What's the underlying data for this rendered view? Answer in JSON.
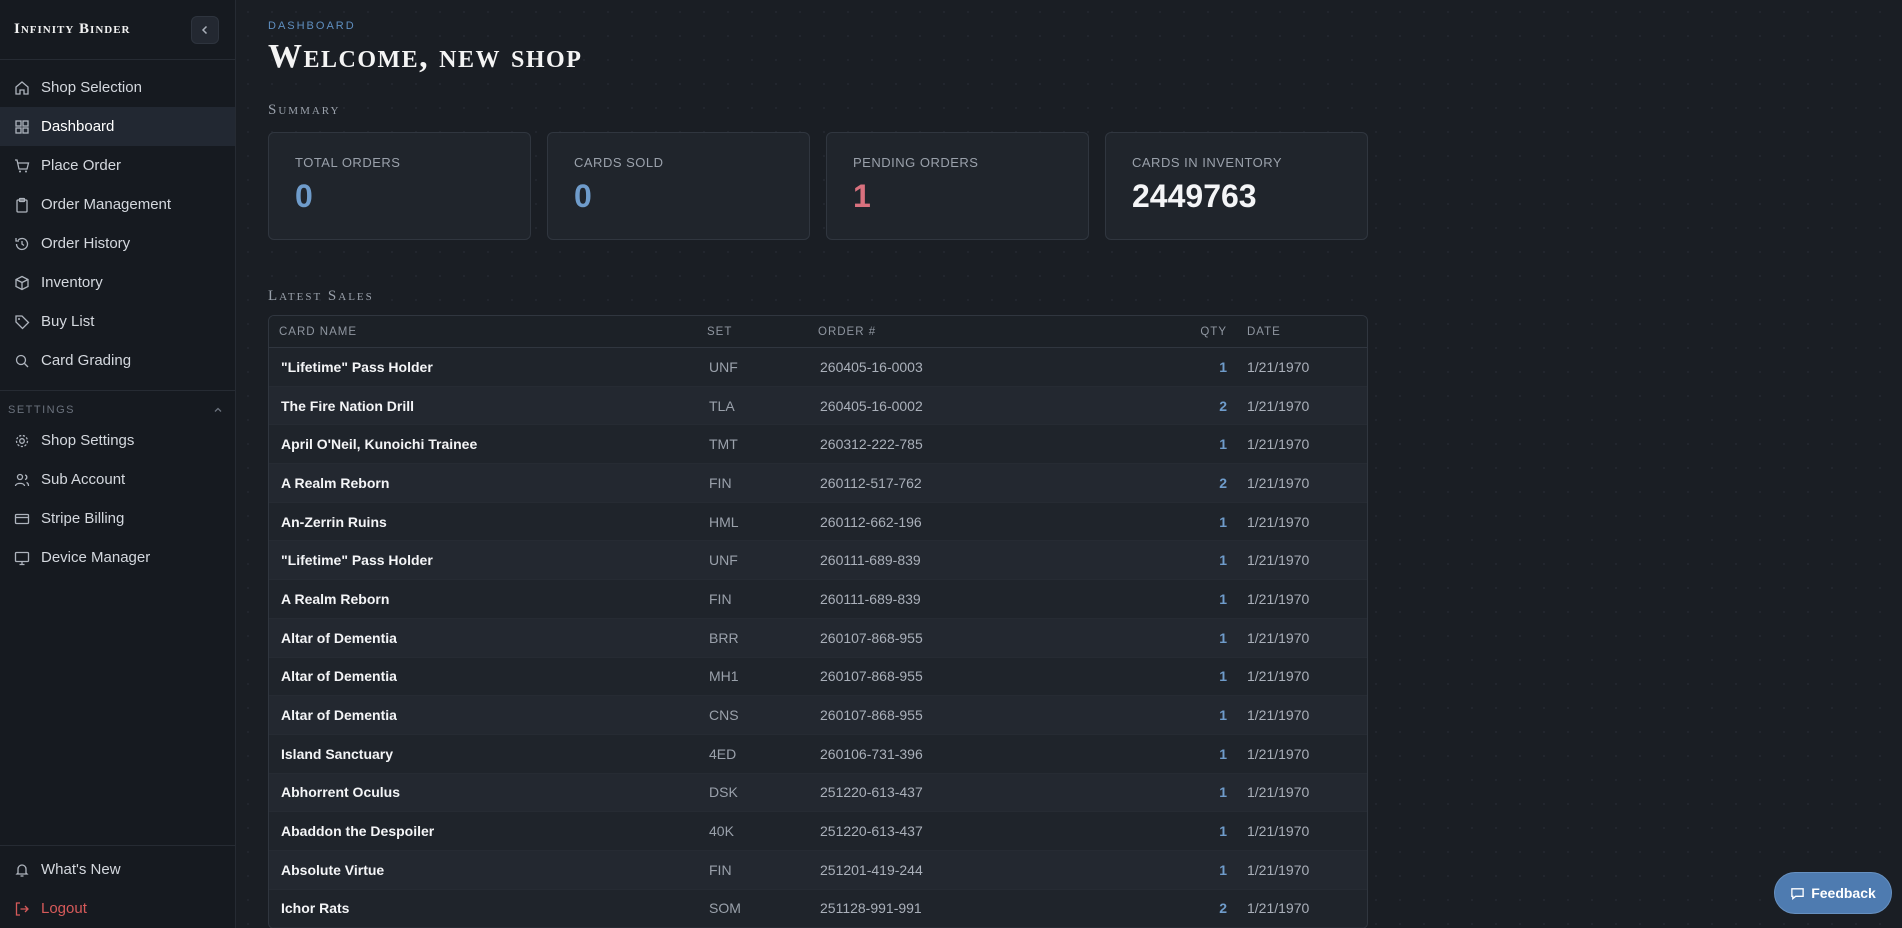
{
  "sidebar": {
    "brand": "Infinity Binder",
    "nav": [
      {
        "label": "Shop Selection",
        "icon": "home-icon"
      },
      {
        "label": "Dashboard",
        "icon": "grid-icon",
        "active": true
      },
      {
        "label": "Place Order",
        "icon": "cart-icon"
      },
      {
        "label": "Order Management",
        "icon": "clipboard-icon"
      },
      {
        "label": "Order History",
        "icon": "history-icon"
      },
      {
        "label": "Inventory",
        "icon": "box-icon"
      },
      {
        "label": "Buy List",
        "icon": "tag-icon"
      },
      {
        "label": "Card Grading",
        "icon": "search-icon"
      }
    ],
    "settings_label": "SETTINGS",
    "settings": [
      {
        "label": "Shop Settings",
        "icon": "gear-icon"
      },
      {
        "label": "Sub Account",
        "icon": "users-icon"
      },
      {
        "label": "Stripe Billing",
        "icon": "credit-card-icon"
      },
      {
        "label": "Device Manager",
        "icon": "monitor-icon"
      }
    ],
    "whats_new": "What's New",
    "logout": "Logout"
  },
  "header": {
    "eyebrow": "DASHBOARD",
    "title": "Welcome, new shop"
  },
  "summary": {
    "title": "Summary",
    "cards": [
      {
        "label": "TOTAL ORDERS",
        "value": "0"
      },
      {
        "label": "CARDS SOLD",
        "value": "0"
      },
      {
        "label": "PENDING ORDERS",
        "value": "1"
      },
      {
        "label": "CARDS IN INVENTORY",
        "value": "2449763"
      }
    ]
  },
  "sales": {
    "title": "Latest Sales",
    "columns": {
      "name": "CARD NAME",
      "set": "SET",
      "order": "ORDER #",
      "qty": "QTY",
      "date": "DATE"
    },
    "rows": [
      {
        "name": "\"Lifetime\" Pass Holder",
        "set": "UNF",
        "order": "260405-16-0003",
        "qty": "1",
        "date": "1/21/1970"
      },
      {
        "name": "The Fire Nation Drill",
        "set": "TLA",
        "order": "260405-16-0002",
        "qty": "2",
        "date": "1/21/1970"
      },
      {
        "name": "April O'Neil, Kunoichi Trainee",
        "set": "TMT",
        "order": "260312-222-785",
        "qty": "1",
        "date": "1/21/1970"
      },
      {
        "name": "A Realm Reborn",
        "set": "FIN",
        "order": "260112-517-762",
        "qty": "2",
        "date": "1/21/1970"
      },
      {
        "name": "An-Zerrin Ruins",
        "set": "HML",
        "order": "260112-662-196",
        "qty": "1",
        "date": "1/21/1970"
      },
      {
        "name": "\"Lifetime\" Pass Holder",
        "set": "UNF",
        "order": "260111-689-839",
        "qty": "1",
        "date": "1/21/1970"
      },
      {
        "name": "A Realm Reborn",
        "set": "FIN",
        "order": "260111-689-839",
        "qty": "1",
        "date": "1/21/1970"
      },
      {
        "name": "Altar of Dementia",
        "set": "BRR",
        "order": "260107-868-955",
        "qty": "1",
        "date": "1/21/1970"
      },
      {
        "name": "Altar of Dementia",
        "set": "MH1",
        "order": "260107-868-955",
        "qty": "1",
        "date": "1/21/1970"
      },
      {
        "name": "Altar of Dementia",
        "set": "CNS",
        "order": "260107-868-955",
        "qty": "1",
        "date": "1/21/1970"
      },
      {
        "name": "Island Sanctuary",
        "set": "4ED",
        "order": "260106-731-396",
        "qty": "1",
        "date": "1/21/1970"
      },
      {
        "name": "Abhorrent Oculus",
        "set": "DSK",
        "order": "251220-613-437",
        "qty": "1",
        "date": "1/21/1970"
      },
      {
        "name": "Abaddon the Despoiler",
        "set": "40K",
        "order": "251220-613-437",
        "qty": "1",
        "date": "1/21/1970"
      },
      {
        "name": "Absolute Virtue",
        "set": "FIN",
        "order": "251201-419-244",
        "qty": "1",
        "date": "1/21/1970"
      },
      {
        "name": "Ichor Rats",
        "set": "SOM",
        "order": "251128-991-991",
        "qty": "2",
        "date": "1/21/1970"
      }
    ]
  },
  "feedback": {
    "label": "Feedback",
    "icon": "chat-icon"
  },
  "colors": {
    "accent": "#4e7bb0",
    "blue_value": "#6f9ccb",
    "red_value": "#d9717e",
    "logout": "#d65a5a"
  }
}
